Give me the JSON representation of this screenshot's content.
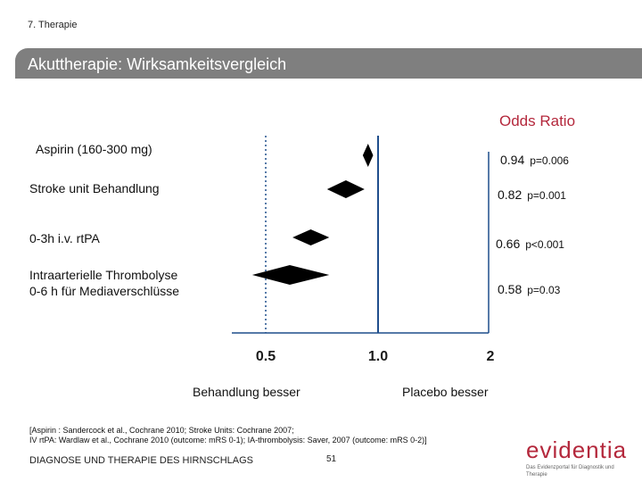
{
  "header": {
    "section": "7. Therapie",
    "title": "Akuttherapie: Wirksamkeitsvergleich"
  },
  "chart_data": {
    "type": "forest",
    "measure_label": "Odds Ratio",
    "x_scale": "log",
    "x_ticks": [
      {
        "value": 0.5,
        "label": "0.5"
      },
      {
        "value": 1.0,
        "label": "1.0"
      },
      {
        "value": 2,
        "label": "2"
      }
    ],
    "reference_value": 1.0,
    "left_direction_label": "Behandlung besser",
    "right_direction_label": "Placebo besser",
    "rows": [
      {
        "label_lines": [
          "Aspirin (160-300 mg)"
        ],
        "or": 0.94,
        "or_text": "0.94",
        "p_text": "p=0.006",
        "ci": [
          0.91,
          0.97
        ]
      },
      {
        "label_lines": [
          "Stroke unit Behandlung"
        ],
        "or": 0.82,
        "or_text": "0.82",
        "p_text": "p=0.001",
        "ci": [
          0.73,
          0.92
        ]
      },
      {
        "label_lines": [
          "0-3h i.v. rtPA"
        ],
        "or": 0.66,
        "or_text": "0.66",
        "p_text": "p<0.001",
        "ci": [
          0.59,
          0.74
        ]
      },
      {
        "label_lines": [
          "Intraarterielle Thrombolyse",
          "0-6 h für Mediaverschlüsse"
        ],
        "or": 0.58,
        "or_text": "0.58",
        "p_text": "p=0.03",
        "ci": [
          0.46,
          0.74
        ]
      }
    ]
  },
  "references": [
    "[Aspirin : Sandercock et al., Cochrane 2010; Stroke Units: Cochrane 2007;",
    "IV rtPA: Wardlaw et al., Cochrane 2010 (outcome: mRS 0-1); IA-thrombolysis: Saver, 2007 (outcome: mRS 0-2)]"
  ],
  "footer": {
    "text": "DIAGNOSE UND THERAPIE DES HIRNSCHLAGS",
    "page": "51"
  },
  "logo": {
    "word": "evidentia",
    "tagline": "Das Evidenzportal für Diagnostik und Therapie"
  },
  "colors": {
    "accent": "#b4283c",
    "title_bar": "#7f7f7f",
    "axis_line": "#1f4e8c"
  }
}
